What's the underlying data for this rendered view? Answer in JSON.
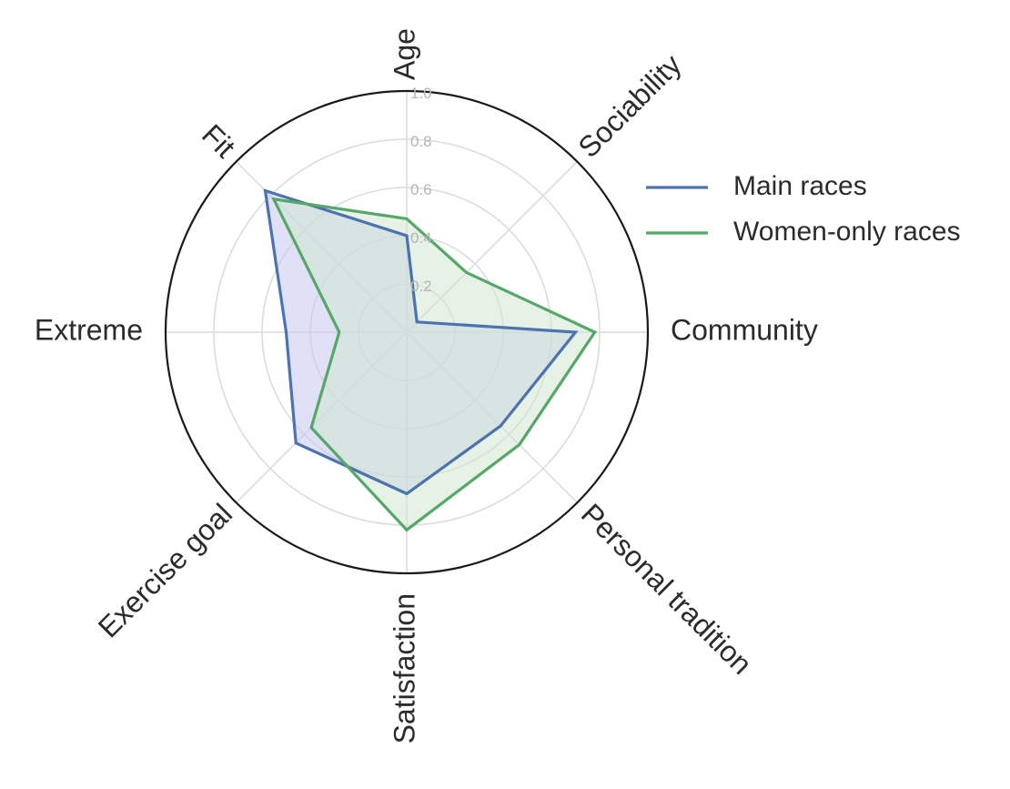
{
  "chart_data": {
    "type": "radar",
    "axes": [
      "Age",
      "Sociability",
      "Community",
      "Personal tradition",
      "Satisfaction",
      "Exercise goal",
      "Extreme",
      "Fit"
    ],
    "rlim": [
      0,
      1.0
    ],
    "r_ticks": [
      "0.2",
      "0.4",
      "0.6",
      "0.8",
      "1.0"
    ],
    "r_tick_values": [
      0.2,
      0.4,
      0.6,
      0.8,
      1.0
    ],
    "grid": true,
    "legend_position": "right",
    "series": [
      {
        "name": "Main races",
        "color": "#4c72b0",
        "fill": "#c6c8ee",
        "values": [
          0.4,
          0.06,
          0.7,
          0.55,
          0.67,
          0.65,
          0.5,
          0.83
        ]
      },
      {
        "name": "Women-only races",
        "color": "#55a868",
        "fill": "#cfe7cf",
        "values": [
          0.47,
          0.35,
          0.78,
          0.66,
          0.82,
          0.56,
          0.28,
          0.78
        ]
      }
    ]
  }
}
